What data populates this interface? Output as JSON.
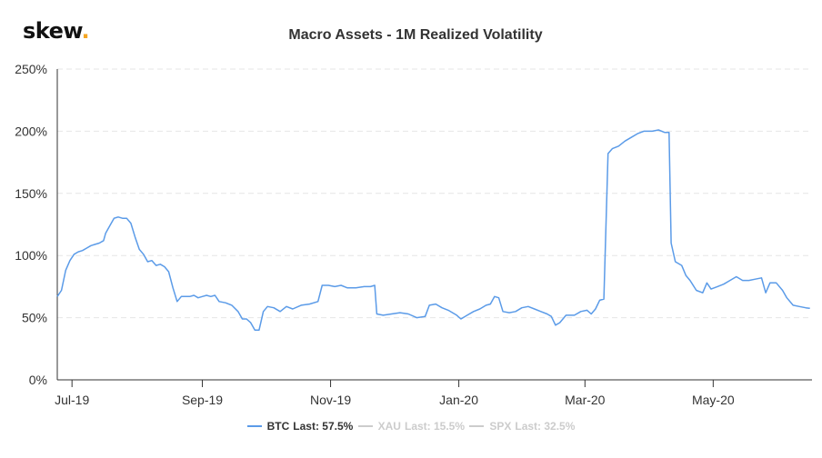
{
  "brand": {
    "name": "skew",
    "dot": "."
  },
  "chart_data": {
    "type": "line",
    "title": "Macro Assets - 1M Realized Volatility",
    "xlabel": "",
    "ylabel": "",
    "ylim": [
      0,
      250
    ],
    "y_ticks": [
      "0%",
      "50%",
      "100%",
      "150%",
      "200%",
      "250%"
    ],
    "x_tick_labels": [
      "Jul-19",
      "Sep-19",
      "Nov-19",
      "Jan-20",
      "Mar-20",
      "May-20"
    ],
    "x_ticks_dates": [
      "2019-07-01",
      "2019-09-01",
      "2019-11-01",
      "2020-01-01",
      "2020-03-01",
      "2020-05-01"
    ],
    "grid": "horizontal-dashed",
    "legend": "bottom-center",
    "series": [
      {
        "name": "BTC",
        "color": "#5b9be8",
        "visible": true,
        "last_label": "Last: 57.5%",
        "points": [
          [
            "2019-06-24",
            67
          ],
          [
            "2019-06-26",
            72
          ],
          [
            "2019-06-28",
            88
          ],
          [
            "2019-06-30",
            96
          ],
          [
            "2019-07-02",
            101
          ],
          [
            "2019-07-04",
            103
          ],
          [
            "2019-07-06",
            104
          ],
          [
            "2019-07-08",
            106
          ],
          [
            "2019-07-10",
            108
          ],
          [
            "2019-07-12",
            109
          ],
          [
            "2019-07-14",
            110
          ],
          [
            "2019-07-16",
            112
          ],
          [
            "2019-07-17",
            118
          ],
          [
            "2019-07-19",
            124
          ],
          [
            "2019-07-21",
            130
          ],
          [
            "2019-07-23",
            131
          ],
          [
            "2019-07-25",
            130
          ],
          [
            "2019-07-27",
            130
          ],
          [
            "2019-07-29",
            126
          ],
          [
            "2019-07-31",
            115
          ],
          [
            "2019-08-02",
            105
          ],
          [
            "2019-08-04",
            101
          ],
          [
            "2019-08-06",
            95
          ],
          [
            "2019-08-08",
            96
          ],
          [
            "2019-08-10",
            92
          ],
          [
            "2019-08-12",
            93
          ],
          [
            "2019-08-14",
            91
          ],
          [
            "2019-08-16",
            87
          ],
          [
            "2019-08-18",
            74
          ],
          [
            "2019-08-20",
            63
          ],
          [
            "2019-08-22",
            67
          ],
          [
            "2019-08-24",
            67
          ],
          [
            "2019-08-26",
            67
          ],
          [
            "2019-08-28",
            68
          ],
          [
            "2019-08-30",
            66
          ],
          [
            "2019-09-01",
            67
          ],
          [
            "2019-09-03",
            68
          ],
          [
            "2019-09-05",
            67
          ],
          [
            "2019-09-07",
            68
          ],
          [
            "2019-09-09",
            63
          ],
          [
            "2019-09-12",
            62
          ],
          [
            "2019-09-15",
            60
          ],
          [
            "2019-09-18",
            55
          ],
          [
            "2019-09-20",
            49
          ],
          [
            "2019-09-22",
            49
          ],
          [
            "2019-09-24",
            46
          ],
          [
            "2019-09-26",
            40
          ],
          [
            "2019-09-28",
            40
          ],
          [
            "2019-09-30",
            55
          ],
          [
            "2019-10-02",
            59
          ],
          [
            "2019-10-05",
            58
          ],
          [
            "2019-10-08",
            55
          ],
          [
            "2019-10-11",
            59
          ],
          [
            "2019-10-14",
            57
          ],
          [
            "2019-10-18",
            60
          ],
          [
            "2019-10-22",
            61
          ],
          [
            "2019-10-26",
            63
          ],
          [
            "2019-10-28",
            76
          ],
          [
            "2019-10-31",
            76
          ],
          [
            "2019-11-03",
            75
          ],
          [
            "2019-11-06",
            76
          ],
          [
            "2019-11-09",
            74
          ],
          [
            "2019-11-13",
            74
          ],
          [
            "2019-11-17",
            75
          ],
          [
            "2019-11-20",
            75
          ],
          [
            "2019-11-22",
            76
          ],
          [
            "2019-11-23",
            53
          ],
          [
            "2019-11-26",
            52
          ],
          [
            "2019-11-30",
            53
          ],
          [
            "2019-12-04",
            54
          ],
          [
            "2019-12-08",
            53
          ],
          [
            "2019-12-12",
            50
          ],
          [
            "2019-12-16",
            51
          ],
          [
            "2019-12-18",
            60
          ],
          [
            "2019-12-21",
            61
          ],
          [
            "2019-12-24",
            58
          ],
          [
            "2019-12-27",
            56
          ],
          [
            "2019-12-31",
            52
          ],
          [
            "2020-01-02",
            49
          ],
          [
            "2020-01-05",
            52
          ],
          [
            "2020-01-08",
            55
          ],
          [
            "2020-01-11",
            57
          ],
          [
            "2020-01-14",
            60
          ],
          [
            "2020-01-16",
            61
          ],
          [
            "2020-01-18",
            67
          ],
          [
            "2020-01-20",
            66
          ],
          [
            "2020-01-22",
            55
          ],
          [
            "2020-01-25",
            54
          ],
          [
            "2020-01-28",
            55
          ],
          [
            "2020-01-31",
            58
          ],
          [
            "2020-02-03",
            59
          ],
          [
            "2020-02-06",
            57
          ],
          [
            "2020-02-09",
            55
          ],
          [
            "2020-02-12",
            53
          ],
          [
            "2020-02-14",
            51
          ],
          [
            "2020-02-16",
            44
          ],
          [
            "2020-02-18",
            46
          ],
          [
            "2020-02-21",
            52
          ],
          [
            "2020-02-25",
            52
          ],
          [
            "2020-02-28",
            55
          ],
          [
            "2020-03-02",
            56
          ],
          [
            "2020-03-04",
            53
          ],
          [
            "2020-03-06",
            57
          ],
          [
            "2020-03-08",
            64
          ],
          [
            "2020-03-10",
            65
          ],
          [
            "2020-03-12",
            182
          ],
          [
            "2020-03-14",
            186
          ],
          [
            "2020-03-17",
            188
          ],
          [
            "2020-03-20",
            192
          ],
          [
            "2020-03-23",
            195
          ],
          [
            "2020-03-26",
            198
          ],
          [
            "2020-03-29",
            200
          ],
          [
            "2020-04-02",
            200
          ],
          [
            "2020-04-05",
            201
          ],
          [
            "2020-04-08",
            199
          ],
          [
            "2020-04-10",
            199
          ],
          [
            "2020-04-11",
            110
          ],
          [
            "2020-04-13",
            95
          ],
          [
            "2020-04-16",
            92
          ],
          [
            "2020-04-18",
            84
          ],
          [
            "2020-04-20",
            80
          ],
          [
            "2020-04-23",
            72
          ],
          [
            "2020-04-26",
            70
          ],
          [
            "2020-04-28",
            78
          ],
          [
            "2020-04-30",
            73
          ],
          [
            "2020-05-03",
            75
          ],
          [
            "2020-05-06",
            77
          ],
          [
            "2020-05-09",
            80
          ],
          [
            "2020-05-12",
            83
          ],
          [
            "2020-05-15",
            80
          ],
          [
            "2020-05-18",
            80
          ],
          [
            "2020-05-21",
            81
          ],
          [
            "2020-05-24",
            82
          ],
          [
            "2020-05-26",
            70
          ],
          [
            "2020-05-28",
            78
          ],
          [
            "2020-05-31",
            78
          ],
          [
            "2020-06-03",
            72
          ],
          [
            "2020-06-05",
            66
          ],
          [
            "2020-06-08",
            60
          ],
          [
            "2020-06-11",
            59
          ],
          [
            "2020-06-14",
            58
          ],
          [
            "2020-06-16",
            57.5
          ]
        ]
      },
      {
        "name": "XAU",
        "color": "#cccccc",
        "visible": false,
        "last_label": "Last: 15.5%"
      },
      {
        "name": "SPX",
        "color": "#cccccc",
        "visible": false,
        "last_label": "Last: 32.5%"
      }
    ]
  }
}
